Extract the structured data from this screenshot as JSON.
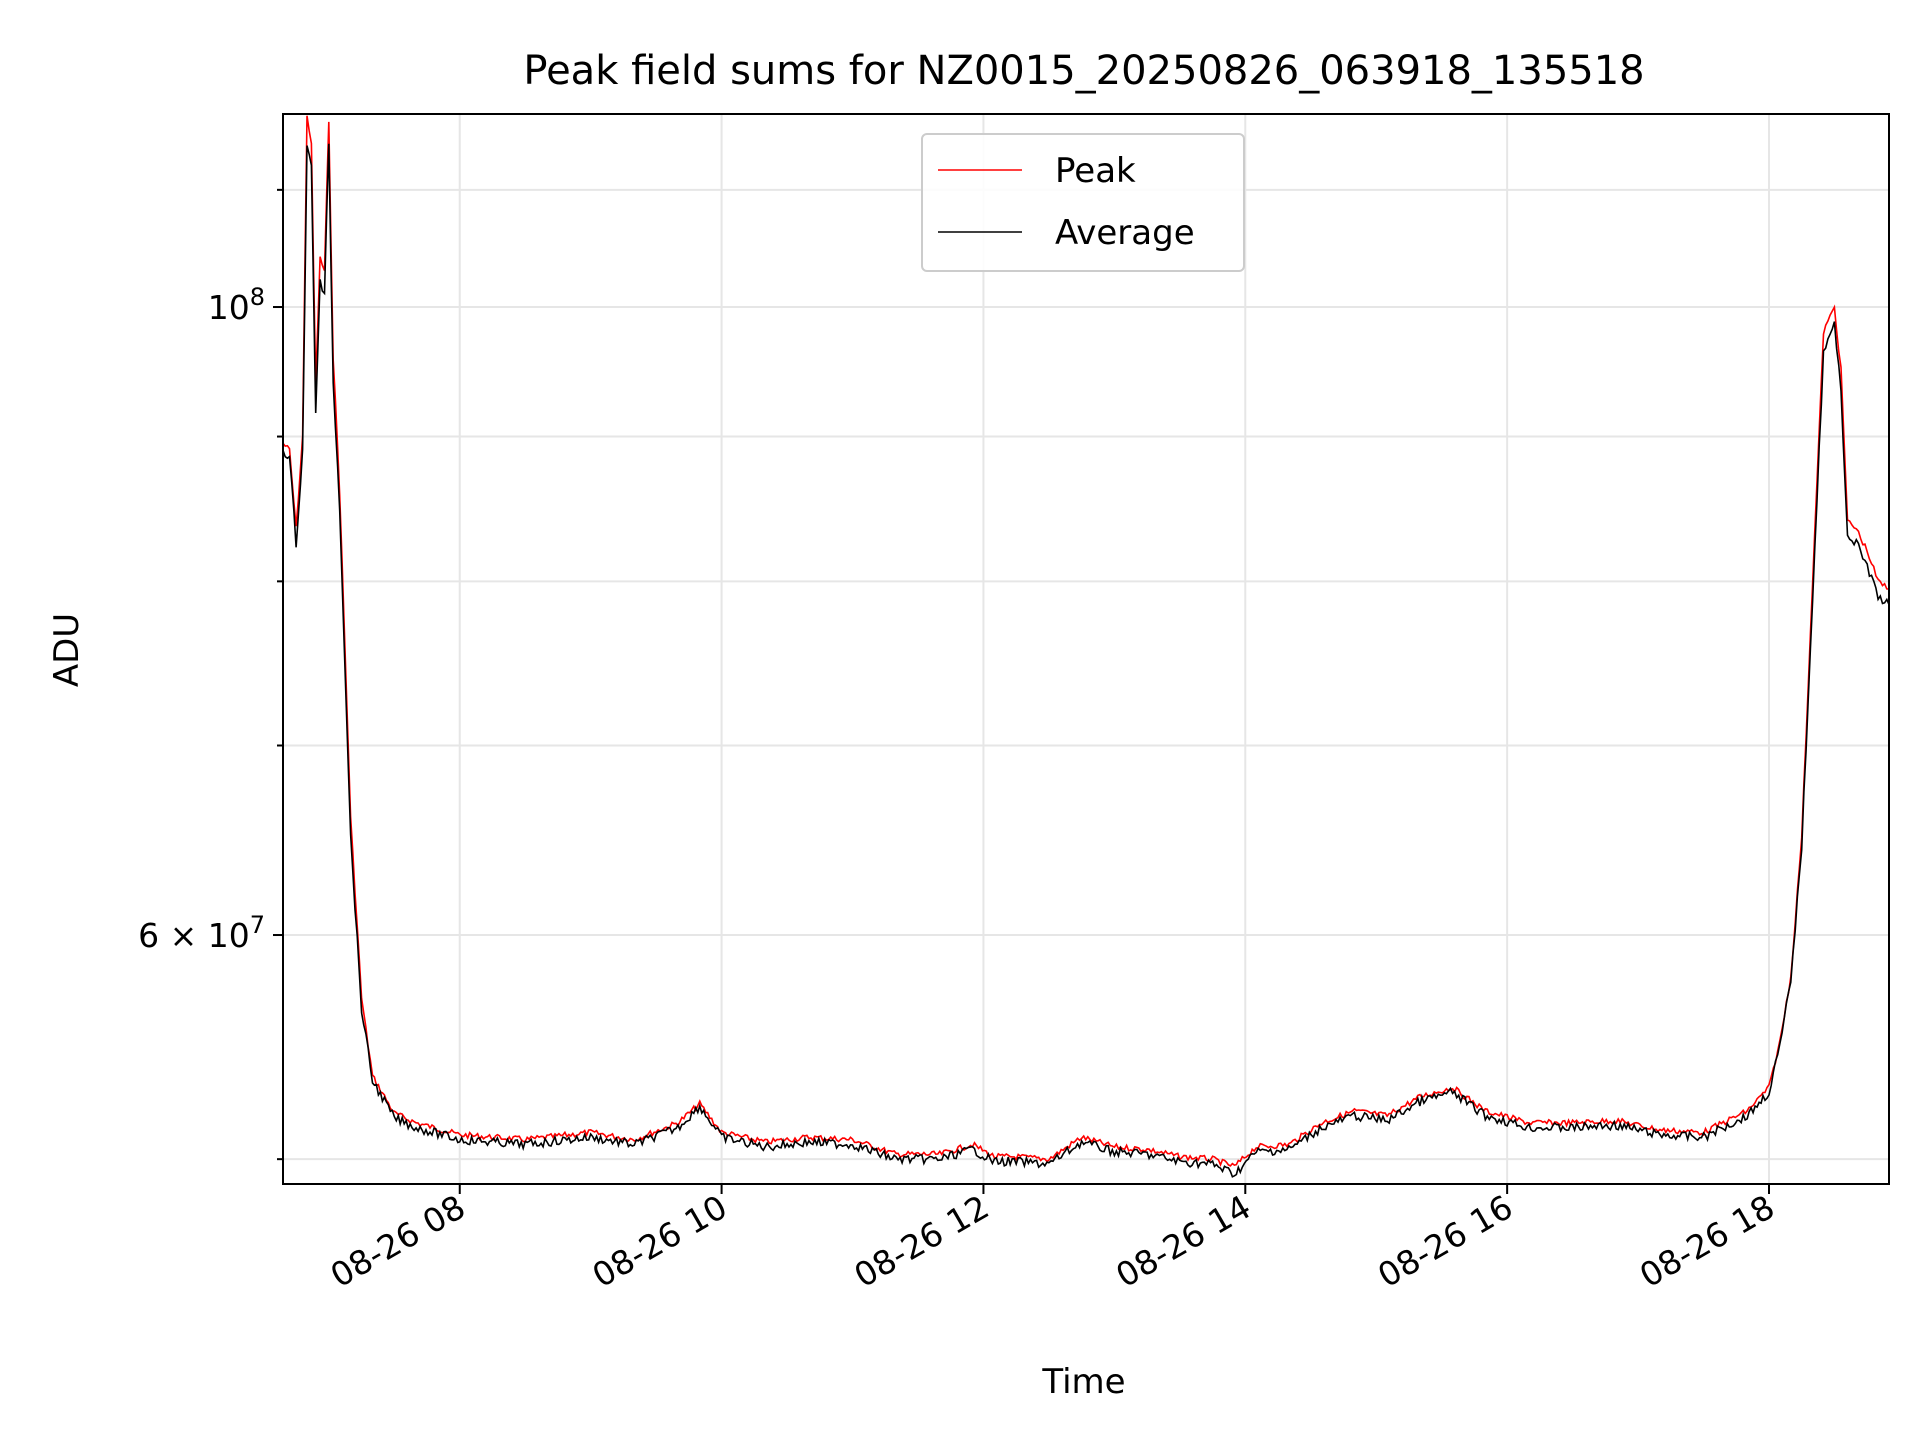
{
  "chart_data": {
    "type": "line",
    "title": "Peak field sums for NZ0015_20250826_063918_135518",
    "xlabel": "Time",
    "ylabel": "ADU",
    "x_ticks": [
      "08-26 08",
      "08-26 10",
      "08-26 12",
      "08-26 14",
      "08-26 16",
      "08-26 18"
    ],
    "y_tick_labels": [
      {
        "value": 100000000,
        "base": "10",
        "exp": "8",
        "coef": ""
      },
      {
        "value": 60000000,
        "base": "10",
        "exp": "7",
        "coef": "6 × "
      }
    ],
    "y_scale": "log",
    "ylim": [
      49000000,
      117000000
    ],
    "xlim": [
      "2025-08-26 06:39",
      "2025-08-26 18:55"
    ],
    "grid": true,
    "legend_position": "upper center",
    "series": [
      {
        "name": "Peak",
        "color": "#ff0000",
        "x": [
          "2025-08-26 06:39",
          "2025-08-26 06:42",
          "2025-08-26 06:45",
          "2025-08-26 06:48",
          "2025-08-26 06:50",
          "2025-08-26 06:52",
          "2025-08-26 06:54",
          "2025-08-26 06:56",
          "2025-08-26 06:58",
          "2025-08-26 07:00",
          "2025-08-26 07:02",
          "2025-08-26 07:05",
          "2025-08-26 07:10",
          "2025-08-26 07:15",
          "2025-08-26 07:20",
          "2025-08-26 07:30",
          "2025-08-26 07:40",
          "2025-08-26 08:00",
          "2025-08-26 08:30",
          "2025-08-26 09:00",
          "2025-08-26 09:20",
          "2025-08-26 09:40",
          "2025-08-26 09:50",
          "2025-08-26 10:00",
          "2025-08-26 10:20",
          "2025-08-26 10:40",
          "2025-08-26 11:00",
          "2025-08-26 11:20",
          "2025-08-26 11:40",
          "2025-08-26 11:55",
          "2025-08-26 12:05",
          "2025-08-26 12:15",
          "2025-08-26 12:30",
          "2025-08-26 12:45",
          "2025-08-26 13:00",
          "2025-08-26 13:15",
          "2025-08-26 13:30",
          "2025-08-26 13:45",
          "2025-08-26 13:55",
          "2025-08-26 14:05",
          "2025-08-26 14:20",
          "2025-08-26 14:35",
          "2025-08-26 14:50",
          "2025-08-26 15:05",
          "2025-08-26 15:20",
          "2025-08-26 15:35",
          "2025-08-26 15:50",
          "2025-08-26 16:10",
          "2025-08-26 16:30",
          "2025-08-26 16:50",
          "2025-08-26 17:10",
          "2025-08-26 17:30",
          "2025-08-26 17:50",
          "2025-08-26 18:00",
          "2025-08-26 18:05",
          "2025-08-26 18:10",
          "2025-08-26 18:15",
          "2025-08-26 18:20",
          "2025-08-26 18:25",
          "2025-08-26 18:30",
          "2025-08-26 18:33",
          "2025-08-26 18:36",
          "2025-08-26 18:40",
          "2025-08-26 18:45",
          "2025-08-26 18:50",
          "2025-08-26 18:55"
        ],
        "values": [
          89500000,
          89000000,
          83500000,
          90000000,
          117000000,
          114000000,
          94000000,
          104000000,
          103000000,
          116000000,
          96000000,
          86000000,
          66000000,
          57000000,
          53500000,
          51900000,
          51500000,
          51000000,
          50800000,
          51100000,
          50800000,
          51500000,
          52300000,
          51100000,
          50700000,
          50900000,
          50800000,
          50200000,
          50200000,
          50600000,
          50100000,
          50100000,
          50000000,
          50900000,
          50500000,
          50400000,
          50100000,
          50000000,
          49700000,
          50500000,
          50600000,
          51500000,
          52000000,
          51800000,
          52600000,
          53000000,
          52000000,
          51500000,
          51500000,
          51600000,
          51200000,
          51100000,
          52000000,
          53000000,
          55000000,
          58000000,
          65000000,
          80000000,
          98000000,
          100000000,
          95000000,
          84000000,
          83500000,
          82000000,
          80000000,
          79500000
        ]
      },
      {
        "name": "Average",
        "color": "#000000",
        "x": [
          "2025-08-26 06:39",
          "2025-08-26 06:42",
          "2025-08-26 06:45",
          "2025-08-26 06:48",
          "2025-08-26 06:50",
          "2025-08-26 06:52",
          "2025-08-26 06:54",
          "2025-08-26 06:56",
          "2025-08-26 06:58",
          "2025-08-26 07:00",
          "2025-08-26 07:02",
          "2025-08-26 07:05",
          "2025-08-26 07:10",
          "2025-08-26 07:15",
          "2025-08-26 07:20",
          "2025-08-26 07:30",
          "2025-08-26 07:40",
          "2025-08-26 08:00",
          "2025-08-26 08:30",
          "2025-08-26 09:00",
          "2025-08-26 09:20",
          "2025-08-26 09:40",
          "2025-08-26 09:50",
          "2025-08-26 10:00",
          "2025-08-26 10:20",
          "2025-08-26 10:40",
          "2025-08-26 11:00",
          "2025-08-26 11:20",
          "2025-08-26 11:40",
          "2025-08-26 11:55",
          "2025-08-26 12:05",
          "2025-08-26 12:15",
          "2025-08-26 12:30",
          "2025-08-26 12:45",
          "2025-08-26 13:00",
          "2025-08-26 13:15",
          "2025-08-26 13:30",
          "2025-08-26 13:45",
          "2025-08-26 13:55",
          "2025-08-26 14:05",
          "2025-08-26 14:20",
          "2025-08-26 14:35",
          "2025-08-26 14:50",
          "2025-08-26 15:05",
          "2025-08-26 15:20",
          "2025-08-26 15:35",
          "2025-08-26 15:50",
          "2025-08-26 16:10",
          "2025-08-26 16:30",
          "2025-08-26 16:50",
          "2025-08-26 17:10",
          "2025-08-26 17:30",
          "2025-08-26 17:50",
          "2025-08-26 18:00",
          "2025-08-26 18:05",
          "2025-08-26 18:10",
          "2025-08-26 18:15",
          "2025-08-26 18:20",
          "2025-08-26 18:25",
          "2025-08-26 18:30",
          "2025-08-26 18:33",
          "2025-08-26 18:36",
          "2025-08-26 18:40",
          "2025-08-26 18:45",
          "2025-08-26 18:50",
          "2025-08-26 18:55"
        ],
        "values": [
          89000000,
          88500000,
          82500000,
          89000000,
          114000000,
          112000000,
          92000000,
          102000000,
          101000000,
          114000000,
          94000000,
          85000000,
          65000000,
          56500000,
          53300000,
          51700000,
          51300000,
          50800000,
          50600000,
          50900000,
          50600000,
          51300000,
          52200000,
          50900000,
          50500000,
          50700000,
          50600000,
          50000000,
          50000000,
          50400000,
          49900000,
          49900000,
          49800000,
          50700000,
          50300000,
          50200000,
          49900000,
          49800000,
          49400000,
          50300000,
          50400000,
          51300000,
          51800000,
          51600000,
          52400000,
          52800000,
          51800000,
          51300000,
          51300000,
          51400000,
          51000000,
          50900000,
          51800000,
          52800000,
          54800000,
          57800000,
          64500000,
          79000000,
          96500000,
          98500000,
          93500000,
          83000000,
          82500000,
          81000000,
          79000000,
          78500000
        ]
      }
    ]
  }
}
